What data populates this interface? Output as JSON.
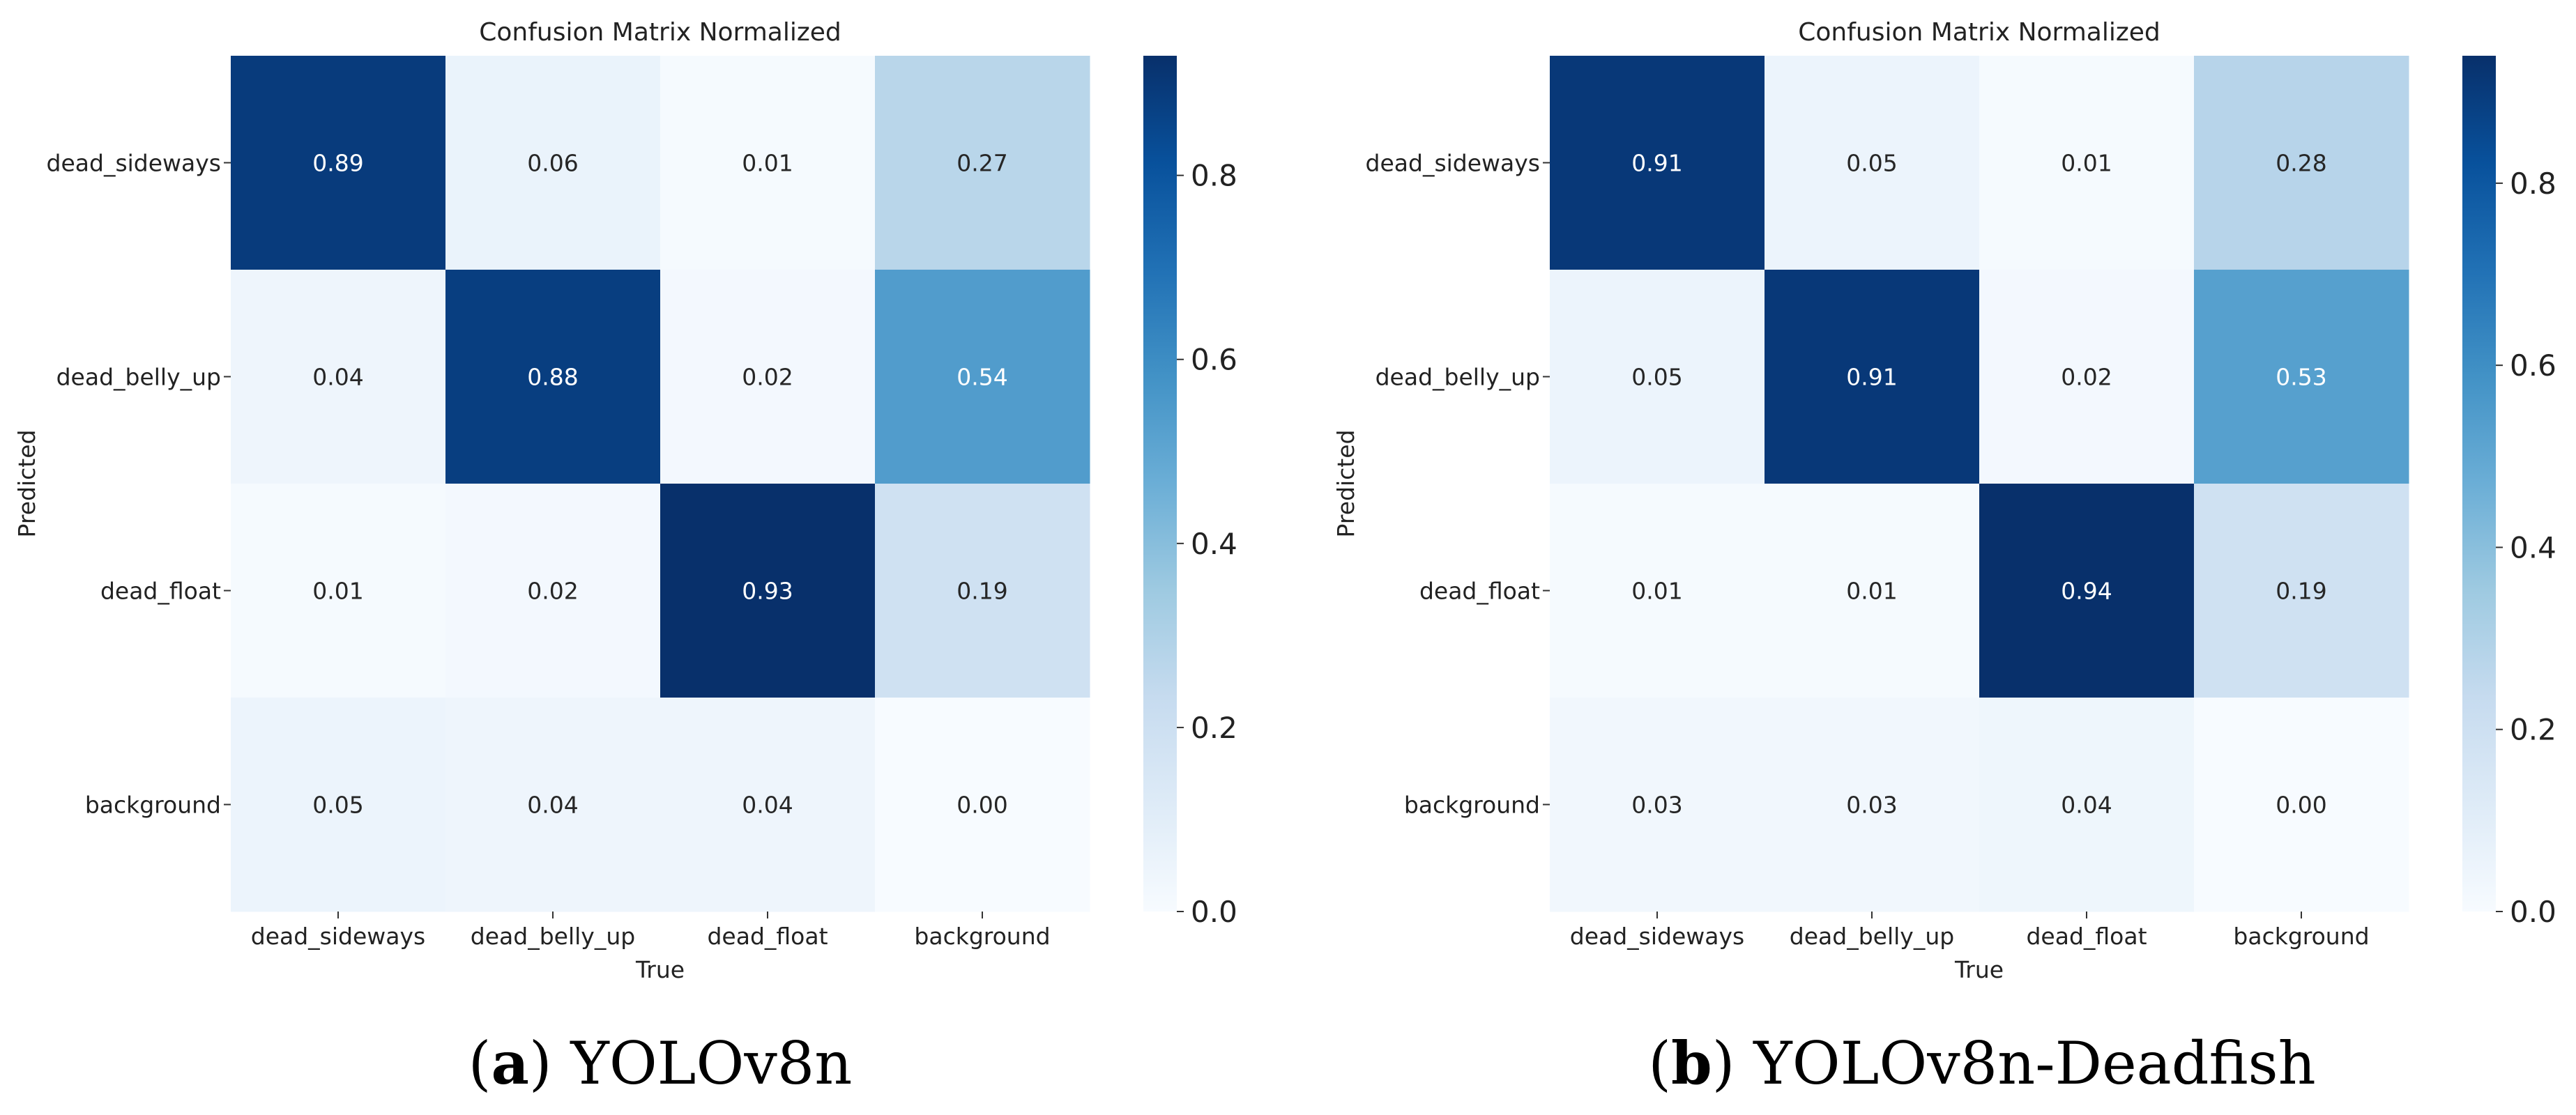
{
  "chart_data": [
    {
      "type": "heatmap",
      "title": "Confusion Matrix Normalized",
      "xlabel": "True",
      "ylabel": "Predicted",
      "x_categories": [
        "dead_sideways",
        "dead_belly_up",
        "dead_float",
        "background"
      ],
      "y_categories": [
        "dead_sideways",
        "dead_belly_up",
        "dead_float",
        "background"
      ],
      "values": [
        [
          0.89,
          0.06,
          0.01,
          0.27
        ],
        [
          0.04,
          0.88,
          0.02,
          0.54
        ],
        [
          0.01,
          0.02,
          0.93,
          0.19
        ],
        [
          0.05,
          0.04,
          0.04,
          0.0
        ]
      ],
      "colorbar": {
        "range": [
          0,
          0.93
        ],
        "ticks": [
          "0.0",
          "0.2",
          "0.4",
          "0.6",
          "0.8"
        ]
      },
      "caption_label": "(a)",
      "caption_letter": "a",
      "caption_text": "YOLOv8n"
    },
    {
      "type": "heatmap",
      "title": "Confusion Matrix Normalized",
      "xlabel": "True",
      "ylabel": "Predicted",
      "x_categories": [
        "dead_sideways",
        "dead_belly_up",
        "dead_float",
        "background"
      ],
      "y_categories": [
        "dead_sideways",
        "dead_belly_up",
        "dead_float",
        "background"
      ],
      "values": [
        [
          0.91,
          0.05,
          0.01,
          0.28
        ],
        [
          0.05,
          0.91,
          0.02,
          0.53
        ],
        [
          0.01,
          0.01,
          0.94,
          0.19
        ],
        [
          0.03,
          0.03,
          0.04,
          0.0
        ]
      ],
      "colorbar": {
        "range": [
          0,
          0.94
        ],
        "ticks": [
          "0.0",
          "0.2",
          "0.4",
          "0.6",
          "0.8"
        ]
      },
      "caption_label": "(b)",
      "caption_letter": "b",
      "caption_text": "YOLOv8n-Deadfish"
    }
  ]
}
